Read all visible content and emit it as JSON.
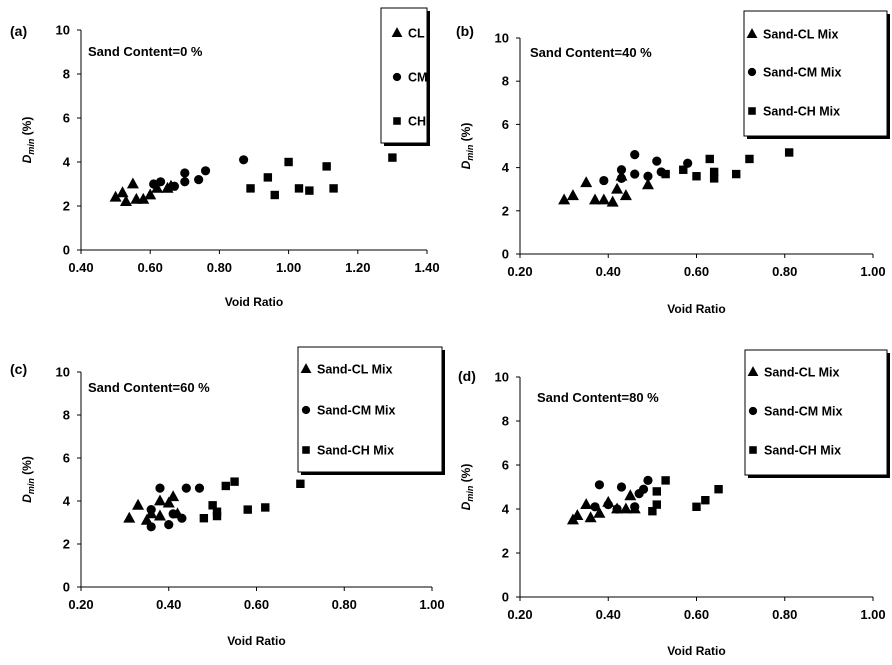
{
  "chart_data": [
    {
      "panel": "(a)",
      "type": "scatter",
      "annotation": "Sand Content=0 %",
      "xlabel": "Void Ratio",
      "ylabel_main": "D",
      "ylabel_sub": "min",
      "ylabel_suffix": " (%)",
      "xlim": [
        0.4,
        1.4
      ],
      "ylim": [
        0,
        10
      ],
      "xticks": [
        "0.40",
        "0.60",
        "0.80",
        "1.00",
        "1.20",
        "1.40"
      ],
      "yticks": [
        "0",
        "2",
        "4",
        "6",
        "8",
        "10"
      ],
      "legend_position": "top-right",
      "series": [
        {
          "name": "CL",
          "marker": "triangle",
          "points": [
            [
              0.5,
              2.4
            ],
            [
              0.52,
              2.6
            ],
            [
              0.53,
              2.2
            ],
            [
              0.55,
              3.0
            ],
            [
              0.56,
              2.3
            ],
            [
              0.58,
              2.3
            ],
            [
              0.6,
              2.5
            ],
            [
              0.62,
              2.8
            ],
            [
              0.65,
              2.8
            ],
            [
              0.66,
              2.9
            ]
          ]
        },
        {
          "name": "CM",
          "marker": "circle",
          "points": [
            [
              0.61,
              3.0
            ],
            [
              0.63,
              3.1
            ],
            [
              0.67,
              2.9
            ],
            [
              0.7,
              3.1
            ],
            [
              0.7,
              3.5
            ],
            [
              0.74,
              3.2
            ],
            [
              0.76,
              3.6
            ],
            [
              0.87,
              4.1
            ]
          ]
        },
        {
          "name": "CH",
          "marker": "square",
          "points": [
            [
              0.89,
              2.8
            ],
            [
              0.94,
              3.3
            ],
            [
              0.96,
              2.5
            ],
            [
              1.0,
              4.0
            ],
            [
              1.03,
              2.8
            ],
            [
              1.06,
              2.7
            ],
            [
              1.11,
              3.8
            ],
            [
              1.13,
              2.8
            ],
            [
              1.3,
              4.2
            ]
          ]
        }
      ]
    },
    {
      "panel": "(b)",
      "type": "scatter",
      "annotation": "Sand Content=40 %",
      "xlabel": "Void Ratio",
      "ylabel_main": "D",
      "ylabel_sub": "min",
      "ylabel_suffix": " (%)",
      "xlim": [
        0.2,
        1.0
      ],
      "ylim": [
        0,
        10
      ],
      "xticks": [
        "0.20",
        "0.40",
        "0.60",
        "0.80",
        "1.00"
      ],
      "yticks": [
        "0",
        "2",
        "4",
        "6",
        "8",
        "10"
      ],
      "legend_position": "top-right",
      "series": [
        {
          "name": "Sand-CL Mix",
          "marker": "triangle",
          "points": [
            [
              0.3,
              2.5
            ],
            [
              0.32,
              2.7
            ],
            [
              0.35,
              3.3
            ],
            [
              0.37,
              2.5
            ],
            [
              0.39,
              2.5
            ],
            [
              0.41,
              2.4
            ],
            [
              0.42,
              3.0
            ],
            [
              0.43,
              3.6
            ],
            [
              0.44,
              2.7
            ],
            [
              0.49,
              3.2
            ]
          ]
        },
        {
          "name": "Sand-CM Mix",
          "marker": "circle",
          "points": [
            [
              0.39,
              3.4
            ],
            [
              0.43,
              3.9
            ],
            [
              0.43,
              3.5
            ],
            [
              0.46,
              3.7
            ],
            [
              0.46,
              4.6
            ],
            [
              0.49,
              3.6
            ],
            [
              0.51,
              4.3
            ],
            [
              0.52,
              3.8
            ],
            [
              0.58,
              4.2
            ]
          ]
        },
        {
          "name": "Sand-CH Mix",
          "marker": "square",
          "points": [
            [
              0.53,
              3.7
            ],
            [
              0.57,
              3.9
            ],
            [
              0.6,
              3.6
            ],
            [
              0.63,
              4.4
            ],
            [
              0.64,
              3.8
            ],
            [
              0.64,
              3.5
            ],
            [
              0.69,
              3.7
            ],
            [
              0.72,
              4.4
            ],
            [
              0.81,
              4.7
            ]
          ]
        }
      ]
    },
    {
      "panel": "(c)",
      "type": "scatter",
      "annotation": "Sand Content=60 %",
      "xlabel": "Void Ratio",
      "ylabel_main": "D",
      "ylabel_sub": "min",
      "ylabel_suffix": " (%)",
      "xlim": [
        0.2,
        1.0
      ],
      "ylim": [
        0,
        10
      ],
      "xticks": [
        "0.20",
        "0.40",
        "0.60",
        "0.80",
        "1.00"
      ],
      "yticks": [
        "0",
        "2",
        "4",
        "6",
        "8",
        "10"
      ],
      "legend_position": "top-right",
      "series": [
        {
          "name": "Sand-CL Mix",
          "marker": "triangle",
          "points": [
            [
              0.31,
              3.2
            ],
            [
              0.33,
              3.8
            ],
            [
              0.35,
              3.1
            ],
            [
              0.36,
              3.4
            ],
            [
              0.38,
              3.3
            ],
            [
              0.38,
              4.0
            ],
            [
              0.4,
              3.9
            ],
            [
              0.41,
              4.2
            ],
            [
              0.42,
              3.4
            ]
          ]
        },
        {
          "name": "Sand-CM Mix",
          "marker": "circle",
          "points": [
            [
              0.36,
              2.8
            ],
            [
              0.36,
              3.6
            ],
            [
              0.38,
              4.6
            ],
            [
              0.4,
              2.9
            ],
            [
              0.41,
              3.4
            ],
            [
              0.43,
              3.2
            ],
            [
              0.44,
              4.6
            ],
            [
              0.47,
              4.6
            ]
          ]
        },
        {
          "name": "Sand-CH Mix",
          "marker": "square",
          "points": [
            [
              0.48,
              3.2
            ],
            [
              0.5,
              3.8
            ],
            [
              0.51,
              3.3
            ],
            [
              0.51,
              3.5
            ],
            [
              0.53,
              4.7
            ],
            [
              0.55,
              4.9
            ],
            [
              0.58,
              3.6
            ],
            [
              0.62,
              3.7
            ],
            [
              0.7,
              4.8
            ]
          ]
        }
      ]
    },
    {
      "panel": "(d)",
      "type": "scatter",
      "annotation": "Sand Content=80 %",
      "xlabel": "Void Ratio",
      "ylabel_main": "D",
      "ylabel_sub": "min",
      "ylabel_suffix": " (%)",
      "xlim": [
        0.2,
        1.0
      ],
      "ylim": [
        0,
        10
      ],
      "xticks": [
        "0.20",
        "0.40",
        "0.60",
        "0.80",
        "1.00"
      ],
      "yticks": [
        "0",
        "2",
        "4",
        "6",
        "8",
        "10"
      ],
      "legend_position": "top-right",
      "series": [
        {
          "name": "Sand-CL Mix",
          "marker": "triangle",
          "points": [
            [
              0.32,
              3.5
            ],
            [
              0.33,
              3.7
            ],
            [
              0.35,
              4.2
            ],
            [
              0.36,
              3.6
            ],
            [
              0.38,
              3.8
            ],
            [
              0.4,
              4.3
            ],
            [
              0.42,
              4.0
            ],
            [
              0.44,
              4.0
            ],
            [
              0.45,
              4.6
            ],
            [
              0.46,
              4.0
            ]
          ]
        },
        {
          "name": "Sand-CM Mix",
          "marker": "circle",
          "points": [
            [
              0.37,
              4.1
            ],
            [
              0.38,
              5.1
            ],
            [
              0.4,
              4.2
            ],
            [
              0.42,
              4.0
            ],
            [
              0.43,
              5.0
            ],
            [
              0.46,
              4.1
            ],
            [
              0.47,
              4.7
            ],
            [
              0.48,
              4.9
            ],
            [
              0.49,
              5.3
            ]
          ]
        },
        {
          "name": "Sand-CH Mix",
          "marker": "square",
          "points": [
            [
              0.5,
              3.9
            ],
            [
              0.51,
              4.8
            ],
            [
              0.51,
              4.2
            ],
            [
              0.53,
              5.3
            ],
            [
              0.6,
              4.1
            ],
            [
              0.62,
              4.4
            ],
            [
              0.65,
              4.9
            ]
          ]
        }
      ]
    }
  ]
}
